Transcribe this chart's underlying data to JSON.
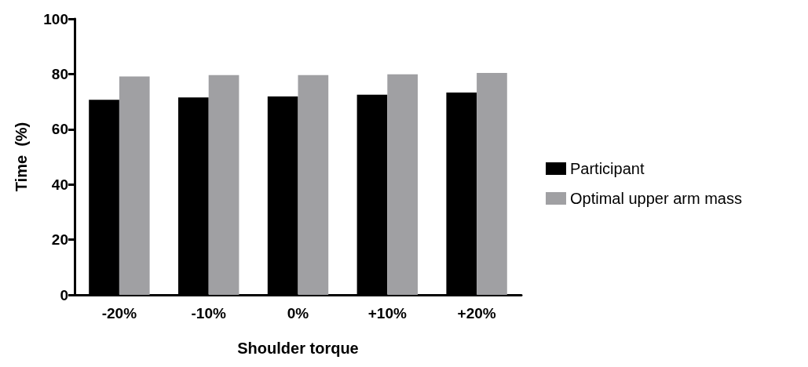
{
  "chart_data": {
    "type": "bar",
    "xlabel": "Shoulder torque",
    "ylabel": "Time  (%)",
    "categories": [
      "-20%",
      "-10%",
      "0%",
      "+10%",
      "+20%"
    ],
    "series": [
      {
        "name": "Participant",
        "color": "#000000",
        "values": [
          70.7,
          71.5,
          71.9,
          72.5,
          73.3
        ]
      },
      {
        "name": "Optimal upper arm mass",
        "color": "#a0a0a3",
        "values": [
          79.1,
          79.6,
          79.6,
          79.9,
          80.4
        ]
      }
    ],
    "ylim": [
      0,
      100
    ],
    "yticks": [
      0,
      20,
      40,
      60,
      80,
      100
    ],
    "grid": false,
    "legend": "right"
  }
}
